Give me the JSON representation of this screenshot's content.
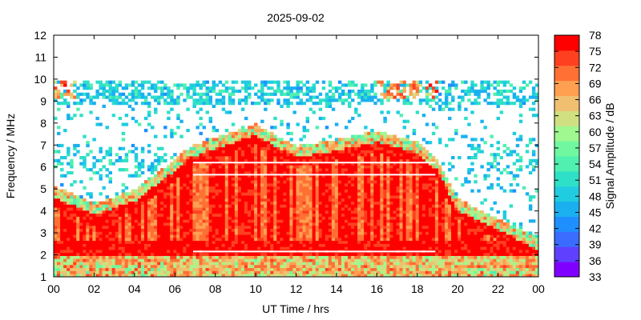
{
  "chart_data": {
    "type": "heatmap",
    "title": "2025-09-02",
    "xlabel": "UT Time / hrs",
    "ylabel": "Frequency / MHz",
    "colorbar_label": "Signal Amplitude / dB",
    "xlim": [
      0,
      24
    ],
    "ylim": [
      1,
      12
    ],
    "x_ticks": [
      "00",
      "02",
      "04",
      "06",
      "08",
      "10",
      "12",
      "14",
      "16",
      "18",
      "20",
      "22",
      "00"
    ],
    "y_ticks": [
      "1",
      "2",
      "3",
      "4",
      "5",
      "6",
      "7",
      "8",
      "9",
      "10",
      "11",
      "12"
    ],
    "colorbar_ticks": [
      "33",
      "36",
      "39",
      "42",
      "45",
      "48",
      "51",
      "54",
      "57",
      "60",
      "63",
      "66",
      "69",
      "72",
      "75",
      "78"
    ],
    "colorbar_range": [
      33,
      78
    ],
    "colorbar_colors": [
      "#8000ff",
      "#6040ff",
      "#3a6dff",
      "#1f8fff",
      "#1ab0f0",
      "#1fcce0",
      "#2ee0c8",
      "#50f0b0",
      "#70f8a0",
      "#a0f890",
      "#d0e080",
      "#f0c070",
      "#ffa050",
      "#ff7035",
      "#ff4020",
      "#ff0000"
    ],
    "features": [
      {
        "name": "F-layer critical frequency ridge (daytime peak)",
        "t_hrs": [
          0,
          2,
          4,
          6,
          6.8,
          8,
          10,
          12,
          14,
          16,
          18,
          19,
          20,
          22,
          24
        ],
        "f_mhz": [
          4.8,
          4.0,
          4.6,
          6.0,
          6.6,
          7.0,
          7.6,
          6.6,
          6.9,
          7.3,
          6.8,
          6.0,
          4.2,
          3.3,
          2.4
        ]
      },
      {
        "name": "Night-time sparse returns band",
        "t_hrs": [
          0,
          24
        ],
        "f_mhz": [
          5.5,
          10.0
        ]
      },
      {
        "name": "Horizontal interference line",
        "f_mhz": 6.2
      },
      {
        "name": "Horizontal interference line",
        "f_mhz": 5.65
      },
      {
        "name": "Horizontal interference line",
        "f_mhz": 2.15
      }
    ]
  }
}
